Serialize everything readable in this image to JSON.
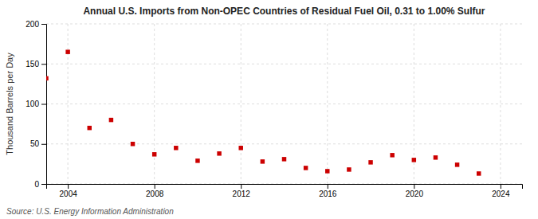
{
  "chart_data": {
    "type": "scatter",
    "title": "Annual U.S. Imports from Non-OPEC Countries of Residual Fuel Oil, 0.31 to 1.00% Sulfur",
    "ylabel": "Thousand Barrels per Day",
    "source": "Source: U.S. Energy Information Administration",
    "x": [
      2003,
      2004,
      2005,
      2006,
      2007,
      2008,
      2009,
      2010,
      2011,
      2012,
      2013,
      2014,
      2015,
      2016,
      2017,
      2018,
      2019,
      2020,
      2021,
      2022,
      2023
    ],
    "values": [
      132,
      165,
      70,
      80,
      50,
      37,
      45,
      29,
      38,
      45,
      28,
      31,
      20,
      16,
      18,
      27,
      36,
      30,
      33,
      24,
      13
    ],
    "color": "#cc0000",
    "marker": "square",
    "xlim": [
      2003.0,
      2025.0
    ],
    "ylim": [
      0,
      200
    ],
    "xticks": [
      2004,
      2008,
      2012,
      2016,
      2020,
      2024
    ],
    "yticks": [
      0,
      50,
      100,
      150,
      200
    ],
    "grid": true
  }
}
